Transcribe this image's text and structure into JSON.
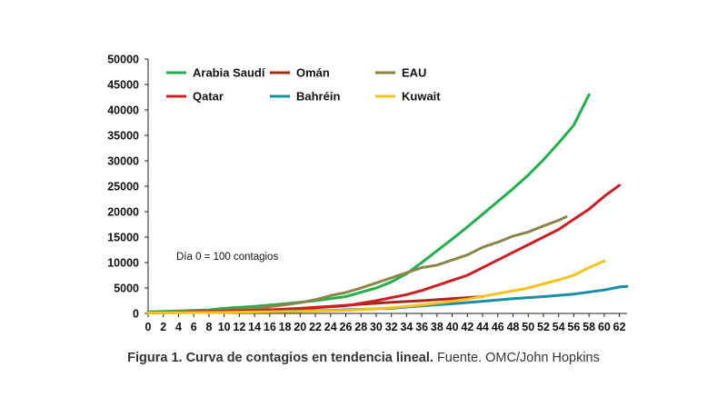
{
  "caption": {
    "bold": "Figura 1. Curva de contagios en tendencia lineal.",
    "rest": " Fuente. OMC/John Hopkins"
  },
  "chart_data": {
    "type": "line",
    "title": "",
    "xlabel": "",
    "ylabel": "",
    "xlim": [
      0,
      63
    ],
    "ylim": [
      0,
      50000
    ],
    "x_ticks": [
      0,
      2,
      4,
      6,
      8,
      10,
      12,
      14,
      16,
      18,
      20,
      22,
      24,
      26,
      28,
      30,
      32,
      34,
      36,
      38,
      40,
      42,
      44,
      46,
      48,
      50,
      52,
      54,
      56,
      58,
      60,
      62
    ],
    "y_ticks": [
      0,
      5000,
      10000,
      15000,
      20000,
      25000,
      30000,
      35000,
      40000,
      45000,
      50000
    ],
    "grid": false,
    "legend_position": "top-left",
    "annotation": "Día 0 = 100 contagios",
    "series": [
      {
        "name": "Arabia Saudí",
        "color": "#22b04b",
        "x": [
          0,
          4,
          8,
          10,
          14,
          18,
          22,
          26,
          30,
          32,
          34,
          36,
          38,
          40,
          42,
          44,
          46,
          48,
          50,
          52,
          54,
          56,
          58
        ],
        "y": [
          300,
          500,
          700,
          1000,
          1400,
          1900,
          2500,
          3300,
          5000,
          6200,
          7800,
          10000,
          12300,
          14600,
          17000,
          19500,
          22000,
          24500,
          27200,
          30200,
          33500,
          37000,
          43000
        ]
      },
      {
        "name": "Omán",
        "color": "#a12a1a",
        "x": [
          0,
          4,
          8,
          12,
          16,
          20,
          24,
          28,
          32,
          36,
          40,
          44
        ],
        "y": [
          100,
          200,
          350,
          500,
          700,
          1000,
          1400,
          1800,
          2200,
          2500,
          2900,
          3300
        ]
      },
      {
        "name": "EAU",
        "color": "#8b8548",
        "x": [
          0,
          4,
          8,
          12,
          14,
          16,
          18,
          20,
          22,
          24,
          26,
          28,
          30,
          32,
          34,
          36,
          38,
          40,
          42,
          44,
          46,
          48,
          50,
          52,
          54,
          55
        ],
        "y": [
          150,
          300,
          500,
          800,
          1000,
          1300,
          1700,
          2100,
          2700,
          3500,
          4100,
          5000,
          6000,
          7000,
          8000,
          9000,
          9500,
          10500,
          11500,
          13000,
          14000,
          15200,
          16000,
          17200,
          18300,
          19000
        ]
      },
      {
        "name": "Qatar",
        "color": "#cc1f1f",
        "x": [
          0,
          6,
          10,
          14,
          18,
          22,
          26,
          28,
          30,
          32,
          34,
          36,
          38,
          40,
          42,
          44,
          46,
          48,
          50,
          52,
          54,
          56,
          58,
          60,
          62
        ],
        "y": [
          100,
          300,
          450,
          600,
          800,
          1100,
          1500,
          2000,
          2500,
          3100,
          3700,
          4500,
          5500,
          6500,
          7500,
          9000,
          10500,
          12000,
          13500,
          15000,
          16500,
          18500,
          20500,
          23000,
          25200
        ]
      },
      {
        "name": "Bahréin",
        "color": "#1a8ea6",
        "x": [
          0,
          8,
          16,
          24,
          32,
          36,
          40,
          44,
          48,
          52,
          56,
          60,
          62,
          63
        ],
        "y": [
          100,
          200,
          350,
          600,
          1000,
          1500,
          1900,
          2400,
          2900,
          3300,
          3800,
          4600,
          5200,
          5300
        ]
      },
      {
        "name": "Kuwait",
        "color": "#f7c11e",
        "x": [
          0,
          10,
          20,
          26,
          30,
          34,
          38,
          42,
          46,
          50,
          52,
          54,
          56,
          58,
          60
        ],
        "y": [
          100,
          200,
          400,
          600,
          900,
          1400,
          2000,
          2800,
          3900,
          5000,
          5800,
          6600,
          7500,
          9000,
          10300
        ]
      }
    ]
  }
}
